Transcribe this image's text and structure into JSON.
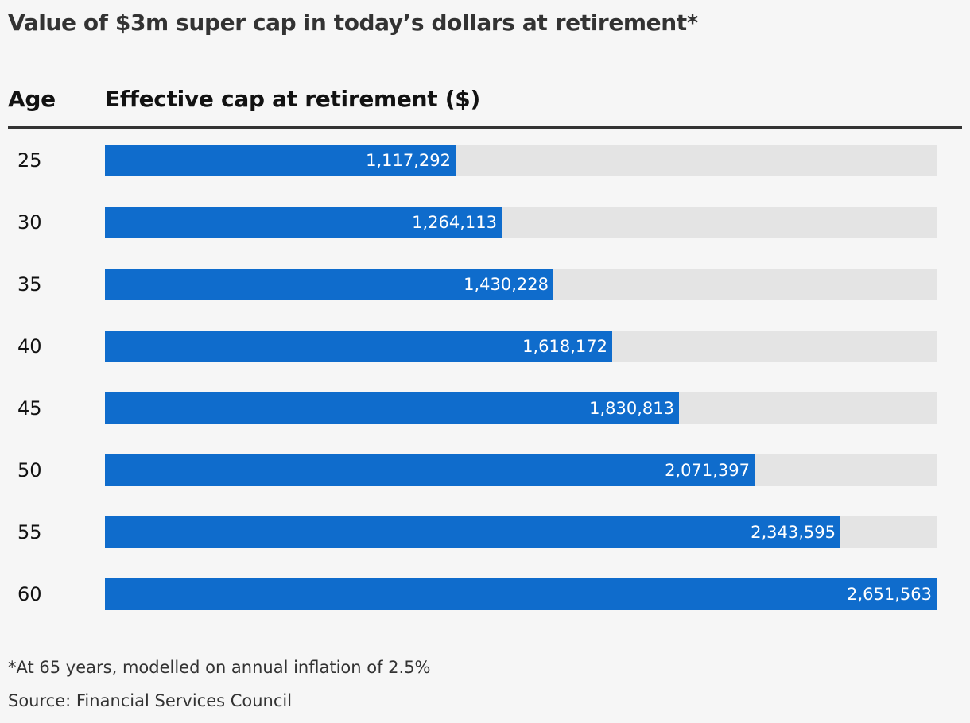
{
  "chart_data": {
    "type": "bar",
    "orientation": "horizontal",
    "title": "Value of $3m super cap in today’s dollars at retirement*",
    "category_header": "Age",
    "value_header": "Effective cap at retirement ($)",
    "categories": [
      "25",
      "30",
      "35",
      "40",
      "45",
      "50",
      "55",
      "60"
    ],
    "values": [
      1117292,
      1264113,
      1430228,
      1618172,
      1830813,
      2071397,
      2343595,
      2651563
    ],
    "value_labels": [
      "1,117,292",
      "1,264,113",
      "1,430,228",
      "1,618,172",
      "1,830,813",
      "2,071,397",
      "2,343,595",
      "2,651,563"
    ],
    "xlim": [
      0,
      2651563
    ],
    "grid": false,
    "legend": "none",
    "bar_color": "#0f6ccc",
    "track_color": "#e4e4e4",
    "note": "*At 65 years, modelled on annual inflation of 2.5%",
    "source": "Source: Financial Services Council"
  }
}
